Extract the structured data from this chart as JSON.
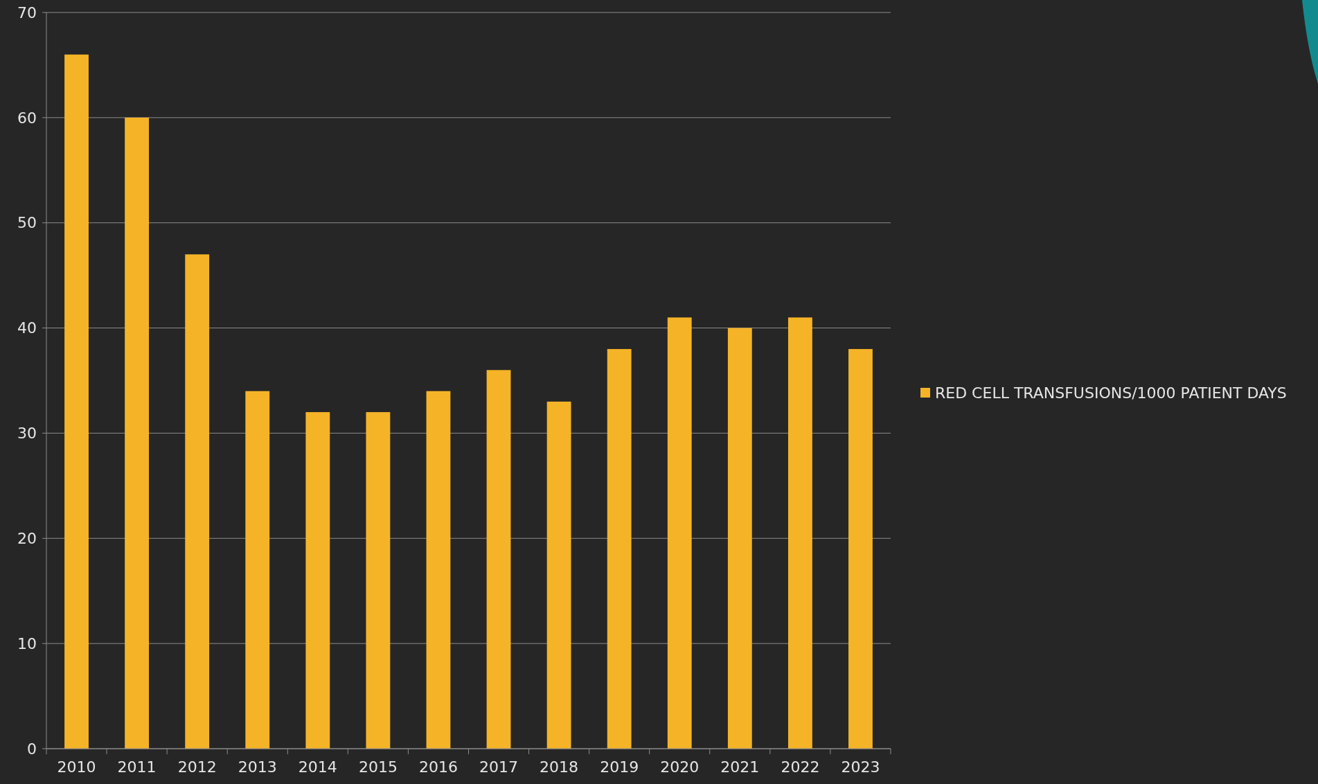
{
  "chart_data": {
    "type": "bar",
    "categories": [
      "2010",
      "2011",
      "2012",
      "2013",
      "2014",
      "2015",
      "2016",
      "2017",
      "2018",
      "2019",
      "2020",
      "2021",
      "2022",
      "2023"
    ],
    "series": [
      {
        "name": "RED CELL TRANSFUSIONS/1000 PATIENT DAYS",
        "color": "#f5b427",
        "values": [
          66,
          60,
          47,
          34,
          32,
          32,
          34,
          36,
          33,
          38,
          41,
          40,
          41,
          38
        ]
      }
    ],
    "ylim": [
      0,
      70
    ],
    "yticks": [
      0,
      10,
      20,
      30,
      40,
      50,
      60,
      70
    ],
    "grid": "y",
    "legend": "right"
  }
}
